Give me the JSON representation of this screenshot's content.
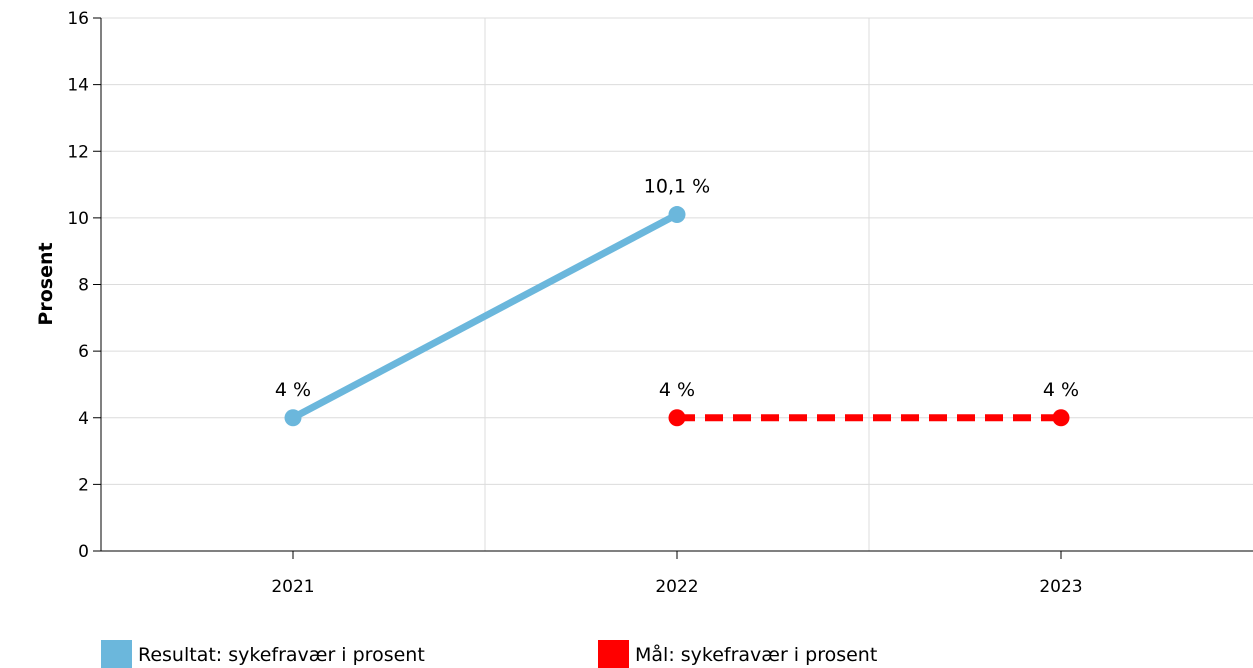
{
  "chart_data": {
    "type": "line",
    "title": "",
    "xlabel": "",
    "ylabel": "Prosent",
    "categories": [
      "2021",
      "2022",
      "2023"
    ],
    "ylim": [
      0,
      16
    ],
    "yticks": [
      0,
      2,
      4,
      6,
      8,
      10,
      12,
      14,
      16
    ],
    "grid": true,
    "legend_position": "bottom-left",
    "series": [
      {
        "name": "Resultat: sykefravær i prosent",
        "color": "#6bb7dc",
        "line_style": "solid",
        "points": [
          {
            "x": "2021",
            "y": 4,
            "label": "4 %"
          },
          {
            "x": "2022",
            "y": 10.1,
            "label": "10,1 %"
          }
        ]
      },
      {
        "name": "Mål: sykefravær i prosent",
        "color": "#ff0000",
        "line_style": "dashed",
        "points": [
          {
            "x": "2022",
            "y": 4,
            "label": "4 %"
          },
          {
            "x": "2023",
            "y": 4,
            "label": "4 %"
          }
        ]
      }
    ]
  }
}
